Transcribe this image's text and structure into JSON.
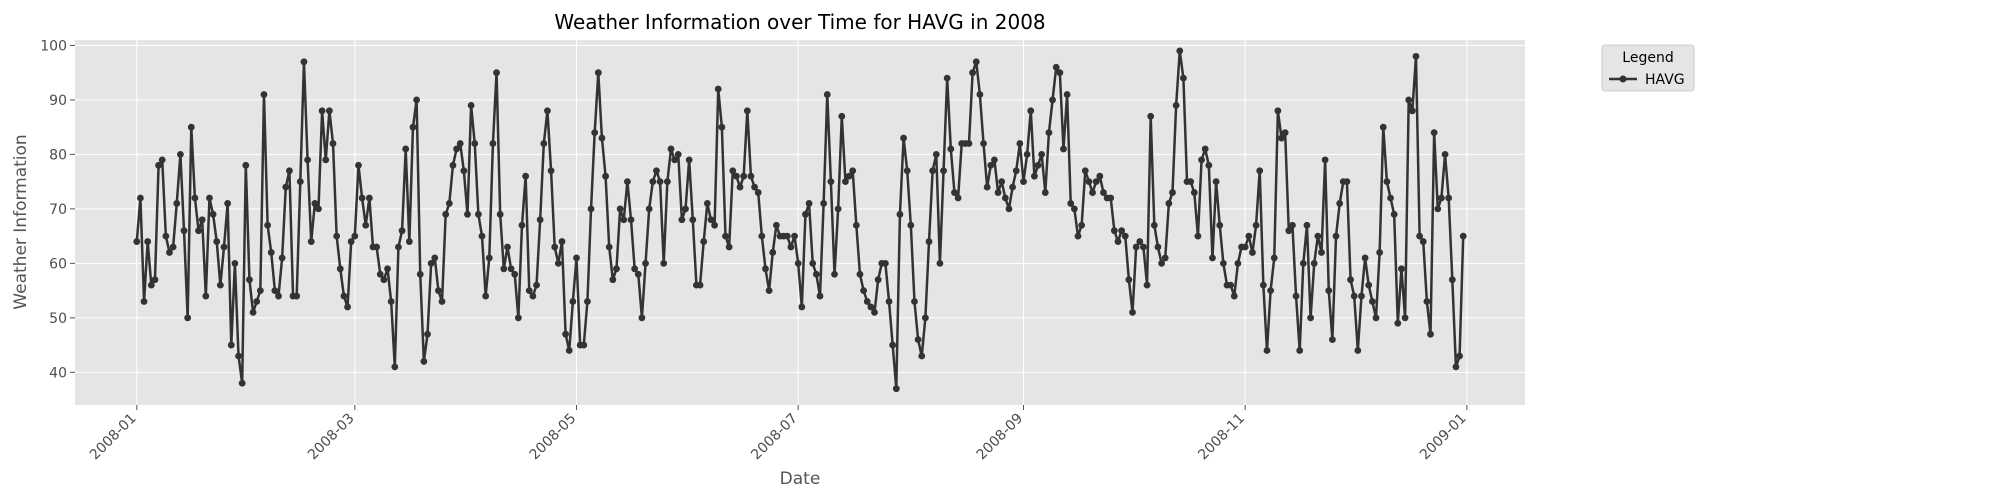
{
  "chart_data": {
    "type": "line",
    "title": "Weather Information over Time for HAVG in 2008",
    "xlabel": "Date",
    "ylabel": "Weather Information",
    "xlim": [
      "2007-12-15",
      "2009-01-17"
    ],
    "ylim": [
      34,
      101
    ],
    "x_ticks": [
      "2008-01",
      "2008-03",
      "2008-05",
      "2008-07",
      "2008-09",
      "2008-11",
      "2009-01"
    ],
    "x_tick_dates": [
      "2008-01-01",
      "2008-03-01",
      "2008-05-01",
      "2008-07-01",
      "2008-09-01",
      "2008-11-01",
      "2009-01-01"
    ],
    "y_ticks": [
      40,
      50,
      60,
      70,
      80,
      90,
      100
    ],
    "grid": true,
    "legend": {
      "title": "Legend",
      "placement": "outside-top-right"
    },
    "colors": {
      "line": "#333333",
      "plot_bg": "#e5e5e5",
      "grid": "#ffffff"
    },
    "series": [
      {
        "name": "HAVG",
        "x_start": "2008-01-01",
        "x_end": "2008-12-31",
        "values": [
          64,
          72,
          53,
          64,
          56,
          57,
          78,
          79,
          65,
          62,
          63,
          71,
          80,
          66,
          50,
          85,
          72,
          66,
          68,
          54,
          72,
          69,
          64,
          56,
          63,
          71,
          45,
          60,
          43,
          38,
          78,
          57,
          51,
          53,
          55,
          91,
          67,
          62,
          55,
          54,
          61,
          74,
          77,
          54,
          54,
          75,
          97,
          79,
          64,
          71,
          70,
          88,
          79,
          88,
          82,
          65,
          59,
          54,
          52,
          64,
          65,
          78,
          72,
          67,
          72,
          63,
          63,
          58,
          57,
          59,
          53,
          41,
          63,
          66,
          81,
          64,
          85,
          90,
          58,
          42,
          47,
          60,
          61,
          55,
          53,
          69,
          71,
          78,
          81,
          82,
          77,
          69,
          89,
          82,
          69,
          65,
          54,
          61,
          82,
          95,
          69,
          59,
          63,
          59,
          58,
          50,
          67,
          76,
          55,
          54,
          56,
          68,
          82,
          88,
          77,
          63,
          60,
          64,
          47,
          44,
          53,
          61,
          45,
          45,
          53,
          70,
          84,
          95,
          83,
          76,
          63,
          57,
          59,
          70,
          68,
          75,
          68,
          59,
          58,
          50,
          60,
          70,
          75,
          77,
          75,
          60,
          75,
          81,
          79,
          80,
          68,
          70,
          79,
          68,
          56,
          56,
          64,
          71,
          68,
          67,
          92,
          85,
          65,
          63,
          77,
          76,
          74,
          76,
          88,
          76,
          74,
          73,
          65,
          59,
          55,
          62,
          67,
          65,
          65,
          65,
          63,
          65,
          60,
          52,
          69,
          71,
          60,
          58,
          54,
          71,
          91,
          75,
          58,
          70,
          87,
          75,
          76,
          77,
          67,
          58,
          55,
          53,
          52,
          51,
          57,
          60,
          60,
          53,
          45,
          37,
          69,
          83,
          77,
          67,
          53,
          46,
          43,
          50,
          64,
          77,
          80,
          60,
          77,
          94,
          81,
          73,
          72,
          82,
          82,
          82,
          95,
          97,
          91,
          82,
          74,
          78,
          79,
          73,
          75,
          72,
          70,
          74,
          77,
          82,
          75,
          80,
          88,
          76,
          78,
          80,
          73,
          84,
          90,
          96,
          95,
          81,
          91,
          71,
          70,
          65,
          67,
          77,
          75,
          73,
          75,
          76,
          73,
          72,
          72,
          66,
          64,
          66,
          65,
          57,
          51,
          63,
          64,
          63,
          56,
          87,
          67,
          63,
          60,
          61,
          71,
          73,
          89,
          99,
          94,
          75,
          75,
          73,
          65,
          79,
          81,
          78,
          61,
          75,
          67,
          60,
          56,
          56,
          54,
          60,
          63,
          63,
          65,
          62,
          67,
          77,
          56,
          44,
          55,
          61,
          88,
          83,
          84,
          66,
          67,
          54,
          44,
          60,
          67,
          50,
          60,
          65,
          62,
          79,
          55,
          46,
          65,
          71,
          75,
          75,
          57,
          54,
          44,
          54,
          61,
          56,
          53,
          50,
          62,
          85,
          75,
          72,
          69,
          49,
          59,
          50,
          90,
          88,
          98,
          65,
          64,
          53,
          47,
          84,
          70,
          72,
          80,
          72,
          57,
          41,
          43,
          65
        ]
      }
    ]
  }
}
